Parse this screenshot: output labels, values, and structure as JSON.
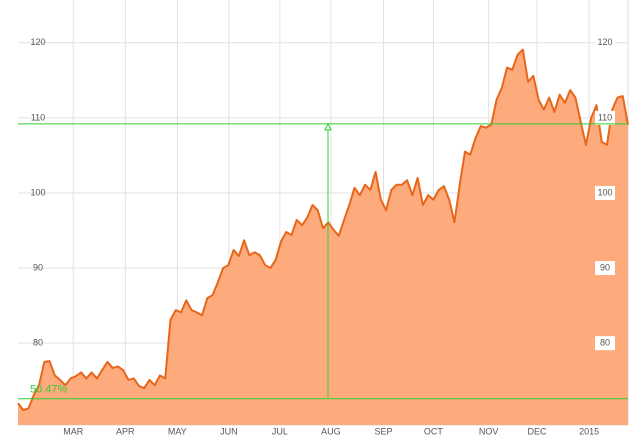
{
  "chart_data": {
    "type": "area",
    "series": [
      {
        "color": "#e8661a",
        "fill": "#fdab7c",
        "values": [
          72.0,
          71.1,
          71.3,
          73.1,
          74.4,
          77.5,
          77.6,
          75.7,
          75.1,
          74.4,
          75.3,
          75.6,
          76.1,
          75.3,
          76.1,
          75.3,
          76.4,
          77.5,
          76.7,
          76.9,
          76.4,
          75.1,
          75.3,
          74.3,
          74.0,
          75.1,
          74.4,
          75.7,
          75.3,
          83.1,
          84.4,
          84.1,
          85.7,
          84.4,
          84.1,
          83.7,
          86.0,
          86.4,
          88.1,
          90.0,
          90.4,
          92.4,
          91.6,
          93.7,
          91.7,
          92.1,
          91.7,
          90.4,
          90.0,
          91.1,
          93.5,
          94.8,
          94.4,
          96.4,
          95.7,
          96.7,
          98.4,
          97.7,
          95.3,
          96.1,
          95.1,
          94.3,
          96.4,
          98.4,
          100.7,
          99.7,
          101.1,
          100.4,
          102.8,
          99.1,
          97.7,
          100.4,
          101.1,
          101.1,
          101.7,
          99.7,
          102.0,
          98.4,
          99.7,
          99.1,
          100.4,
          100.9,
          99.1,
          96.1,
          101.1,
          105.5,
          105.1,
          107.3,
          108.9,
          108.7,
          109.1,
          112.4,
          114.0,
          116.7,
          116.4,
          118.4,
          119.1,
          114.8,
          115.6,
          112.4,
          111.1,
          112.7,
          110.8,
          113.1,
          112.0,
          113.7,
          112.7,
          109.5,
          106.4,
          110.0,
          111.7,
          106.8,
          106.4,
          111.1,
          112.7,
          112.9,
          109.1
        ]
      }
    ],
    "xlim": [
      0,
      116
    ],
    "xticks": [
      {
        "value": 10.5,
        "label": "MAR"
      },
      {
        "value": 20.4,
        "label": "APR"
      },
      {
        "value": 30.3,
        "label": "MAY"
      },
      {
        "value": 40.1,
        "label": "JUN"
      },
      {
        "value": 49.8,
        "label": "JUL"
      },
      {
        "value": 59.5,
        "label": "AUG"
      },
      {
        "value": 69.5,
        "label": "SEP"
      },
      {
        "value": 79,
        "label": "OCT"
      },
      {
        "value": 89.5,
        "label": "NOV"
      },
      {
        "value": 98.7,
        "label": "DEC"
      },
      {
        "value": 108.6,
        "label": "2015"
      }
    ],
    "ylim": [
      69.1,
      125.7
    ],
    "yticks": [
      80,
      90,
      100,
      110,
      120
    ],
    "grid": true,
    "annotation": {
      "from": 72.6,
      "to": 109.2,
      "label": "50.47%",
      "color": "#33cc33"
    }
  }
}
